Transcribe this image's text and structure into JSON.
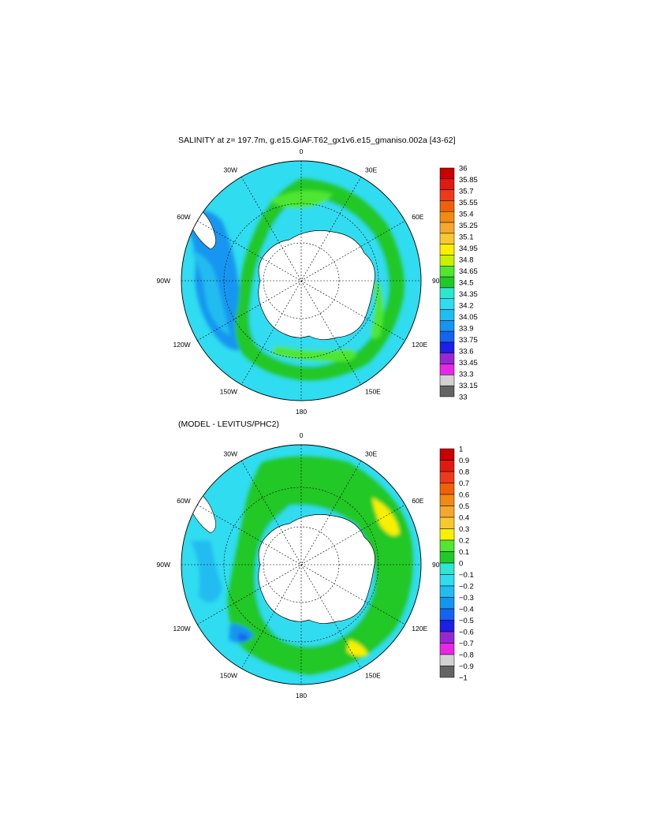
{
  "chart_data": [
    {
      "type": "heatmap",
      "projection": "south-polar-stereographic",
      "title": "SALINITY at z= 197.7m, g.e15.GIAF.T62_gx1v6.e15_gmaniso.002a [43-62]",
      "longitude_labels": [
        "0",
        "30E",
        "60E",
        "90E",
        "120E",
        "150E",
        "180",
        "150W",
        "120W",
        "90W",
        "60W",
        "30W"
      ],
      "colorbar": {
        "levels": [
          "36",
          "35.85",
          "35.7",
          "35.55",
          "35.4",
          "35.25",
          "35.1",
          "34.95",
          "34.8",
          "34.65",
          "34.5",
          "34.35",
          "34.2",
          "34.05",
          "33.9",
          "33.75",
          "33.6",
          "33.45",
          "33.3",
          "33.15",
          "33"
        ],
        "colors": [
          "#c80000",
          "#e01a10",
          "#ec3a1a",
          "#f06008",
          "#f08a12",
          "#f4a830",
          "#f8c832",
          "#f8f000",
          "#c8f000",
          "#50e632",
          "#20c828",
          "#2ee6d2",
          "#30dcf0",
          "#22bcf0",
          "#1496f0",
          "#1464f0",
          "#1e1ee6",
          "#9628d2",
          "#e628e6",
          "#d2d2d2",
          "#646464"
        ]
      },
      "dominant_range": [
        "33.9",
        "34.65"
      ]
    },
    {
      "type": "heatmap",
      "projection": "south-polar-stereographic",
      "title": "(MODEL - LEVITUS/PHC2)",
      "longitude_labels": [
        "0",
        "30E",
        "60E",
        "90E",
        "120E",
        "150E",
        "180",
        "150W",
        "120W",
        "90W",
        "60W",
        "30W"
      ],
      "colorbar": {
        "levels": [
          "1",
          "0.9",
          "0.8",
          "0.7",
          "0.6",
          "0.5",
          "0.4",
          "0.3",
          "0.2",
          "0.1",
          "0",
          "−0.1",
          "−0.2",
          "−0.3",
          "−0.4",
          "−0.5",
          "−0.6",
          "−0.7",
          "−0.8",
          "−0.9",
          "−1"
        ],
        "colors": [
          "#c80000",
          "#e01a10",
          "#ec3a1a",
          "#f06008",
          "#f08a12",
          "#f4a830",
          "#f8c832",
          "#f8f000",
          "#50e632",
          "#20c828",
          "#2ee6d2",
          "#30dcf0",
          "#22bcf0",
          "#1496f0",
          "#1464f0",
          "#1e1ee6",
          "#9628d2",
          "#e628e6",
          "#d2d2d2",
          "#646464"
        ]
      },
      "dominant_range": [
        "-0.4",
        "0.4"
      ]
    }
  ],
  "palette": {
    "land": "#ffffff",
    "outline": "#000000"
  }
}
